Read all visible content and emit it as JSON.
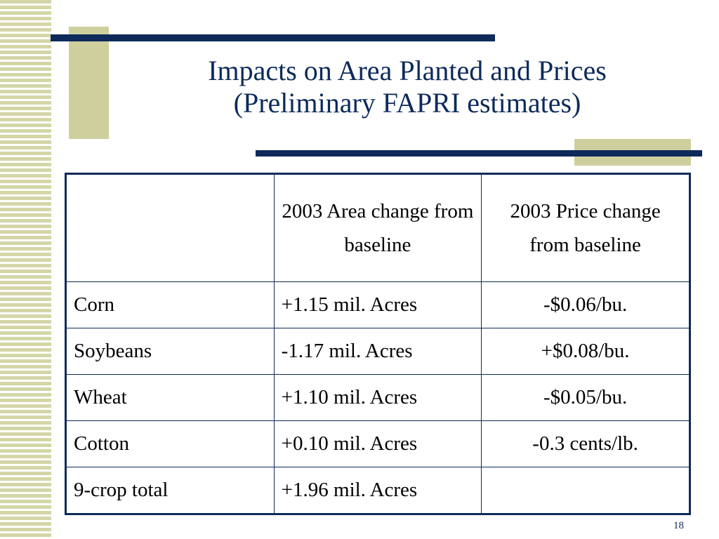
{
  "title": {
    "line1": "Impacts on Area Planted and Prices",
    "line2": "(Preliminary FAPRI estimates)"
  },
  "table": {
    "headers": [
      "",
      "2003 Area change from baseline",
      "2003 Price change from baseline"
    ],
    "rows": [
      [
        "Corn",
        "+1.15 mil. Acres",
        "-$0.06/bu."
      ],
      [
        "Soybeans",
        "-1.17 mil. Acres",
        "+$0.08/bu."
      ],
      [
        "Wheat",
        "+1.10 mil. Acres",
        "-$0.05/bu."
      ],
      [
        "Cotton",
        "+0.10 mil. Acres",
        "-0.3 cents/lb."
      ],
      [
        "9-crop total",
        "+1.96 mil. Acres",
        ""
      ]
    ]
  },
  "page_number": "18",
  "colors": {
    "accent_navy": "#0d2a5a",
    "accent_olive": "#cfcf9e"
  }
}
